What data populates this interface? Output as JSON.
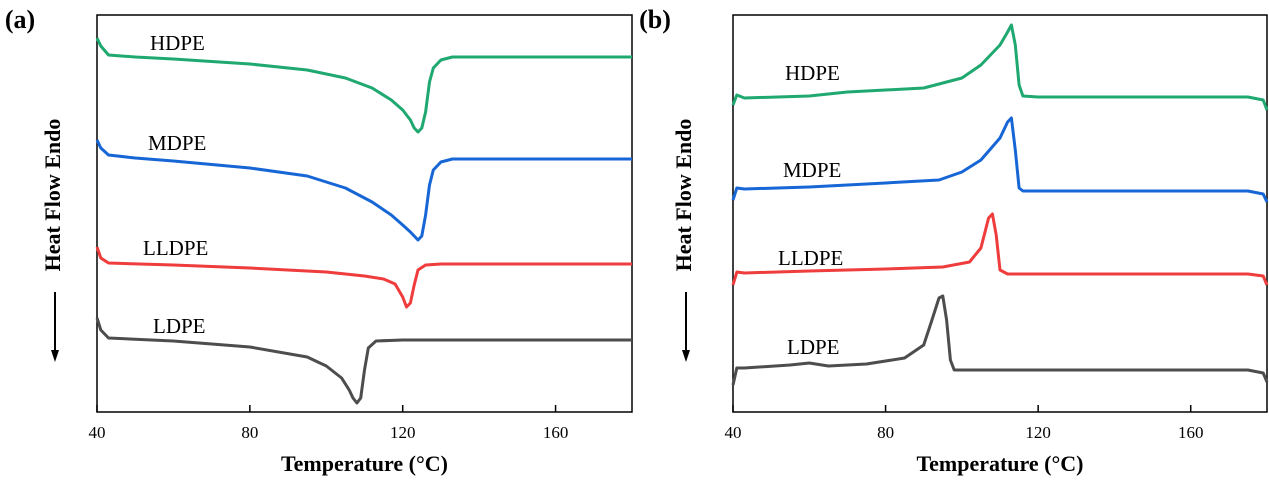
{
  "chart_data": [
    {
      "type": "line",
      "panel_label": "(a)",
      "xlabel": "Temperature (°C)",
      "ylabel": "Heat Flow Endo",
      "xlim": [
        40,
        180
      ],
      "xticks": [
        40,
        80,
        120,
        160
      ],
      "ylim": [
        0,
        397
      ],
      "series": [
        {
          "name": "HDPE",
          "color": "#1fa870",
          "x": [
            40,
            41,
            43,
            50,
            60,
            80,
            95,
            105,
            112,
            117,
            120,
            122,
            123,
            124,
            125,
            126,
            127,
            128,
            130,
            133,
            140,
            180
          ],
          "values": [
            374,
            366,
            357,
            355,
            353,
            348,
            342,
            334,
            324,
            312,
            302,
            292,
            284,
            280,
            284,
            300,
            330,
            344,
            352,
            355,
            355,
            355
          ]
        },
        {
          "name": "MDPE",
          "color": "#1766d6",
          "x": [
            40,
            41,
            43,
            50,
            60,
            80,
            95,
            105,
            112,
            117,
            120,
            122,
            123,
            124,
            125,
            126,
            127,
            128,
            130,
            133,
            140,
            180
          ],
          "values": [
            272,
            264,
            257,
            254,
            251,
            244,
            236,
            224,
            210,
            197,
            187,
            180,
            176,
            172,
            176,
            197,
            227,
            242,
            250,
            253,
            253,
            253
          ]
        },
        {
          "name": "LLDPE",
          "color": "#ef3c3c",
          "x": [
            40,
            41,
            43,
            60,
            80,
            100,
            110,
            115,
            118,
            120,
            121,
            122,
            123,
            124,
            126,
            130,
            180
          ],
          "values": [
            165,
            154,
            149,
            147,
            144,
            140,
            136,
            133,
            128,
            115,
            105,
            109,
            127,
            142,
            147,
            148,
            148
          ]
        },
        {
          "name": "LDPE",
          "color": "#4d4d4d",
          "x": [
            40,
            41,
            43,
            60,
            80,
            95,
            100,
            104,
            106,
            107,
            108,
            109,
            110,
            111,
            113,
            120,
            180
          ],
          "values": [
            94,
            82,
            74,
            71,
            65,
            55,
            46,
            34,
            22,
            14,
            9,
            14,
            42,
            64,
            71,
            72,
            72
          ]
        }
      ]
    },
    {
      "type": "line",
      "panel_label": "(b)",
      "xlabel": "Temperature (°C)",
      "ylabel": "Heat Flow Endo",
      "xlim": [
        40,
        180
      ],
      "xticks": [
        40,
        80,
        120,
        160
      ],
      "ylim": [
        0,
        397
      ],
      "series": [
        {
          "name": "HDPE",
          "color": "#1fa870",
          "x": [
            40,
            41,
            43,
            60,
            70,
            80,
            90,
            100,
            105,
            110,
            112,
            113,
            114,
            115,
            116,
            120,
            175,
            179,
            180
          ],
          "values": [
            307,
            317,
            314,
            316,
            320,
            322,
            324,
            334,
            347,
            367,
            380,
            387,
            367,
            327,
            316,
            315,
            315,
            312,
            302
          ]
        },
        {
          "name": "MDPE",
          "color": "#1766d6",
          "x": [
            40,
            41,
            43,
            60,
            80,
            94,
            100,
            105,
            110,
            112,
            113,
            114,
            115,
            116,
            120,
            175,
            179,
            180
          ],
          "values": [
            212,
            224,
            223,
            225,
            229,
            232,
            240,
            252,
            274,
            290,
            294,
            262,
            224,
            221,
            221,
            221,
            218,
            210
          ]
        },
        {
          "name": "LLDPE",
          "color": "#ef3c3c",
          "x": [
            40,
            41,
            43,
            60,
            80,
            95,
            102,
            105,
            107,
            108,
            109,
            110,
            112,
            175,
            179,
            180
          ],
          "values": [
            127,
            140,
            139,
            141,
            143,
            145,
            150,
            164,
            194,
            198,
            177,
            142,
            138,
            138,
            136,
            127
          ]
        },
        {
          "name": "LDPE",
          "color": "#4d4d4d",
          "x": [
            40,
            41,
            43,
            55,
            60,
            65,
            75,
            85,
            90,
            92,
            94,
            95,
            96,
            97,
            98,
            120,
            175,
            179,
            180
          ],
          "values": [
            27,
            44,
            44,
            47,
            49,
            46,
            48,
            54,
            67,
            90,
            114,
            116,
            92,
            52,
            42,
            42,
            42,
            39,
            30
          ]
        }
      ]
    }
  ]
}
